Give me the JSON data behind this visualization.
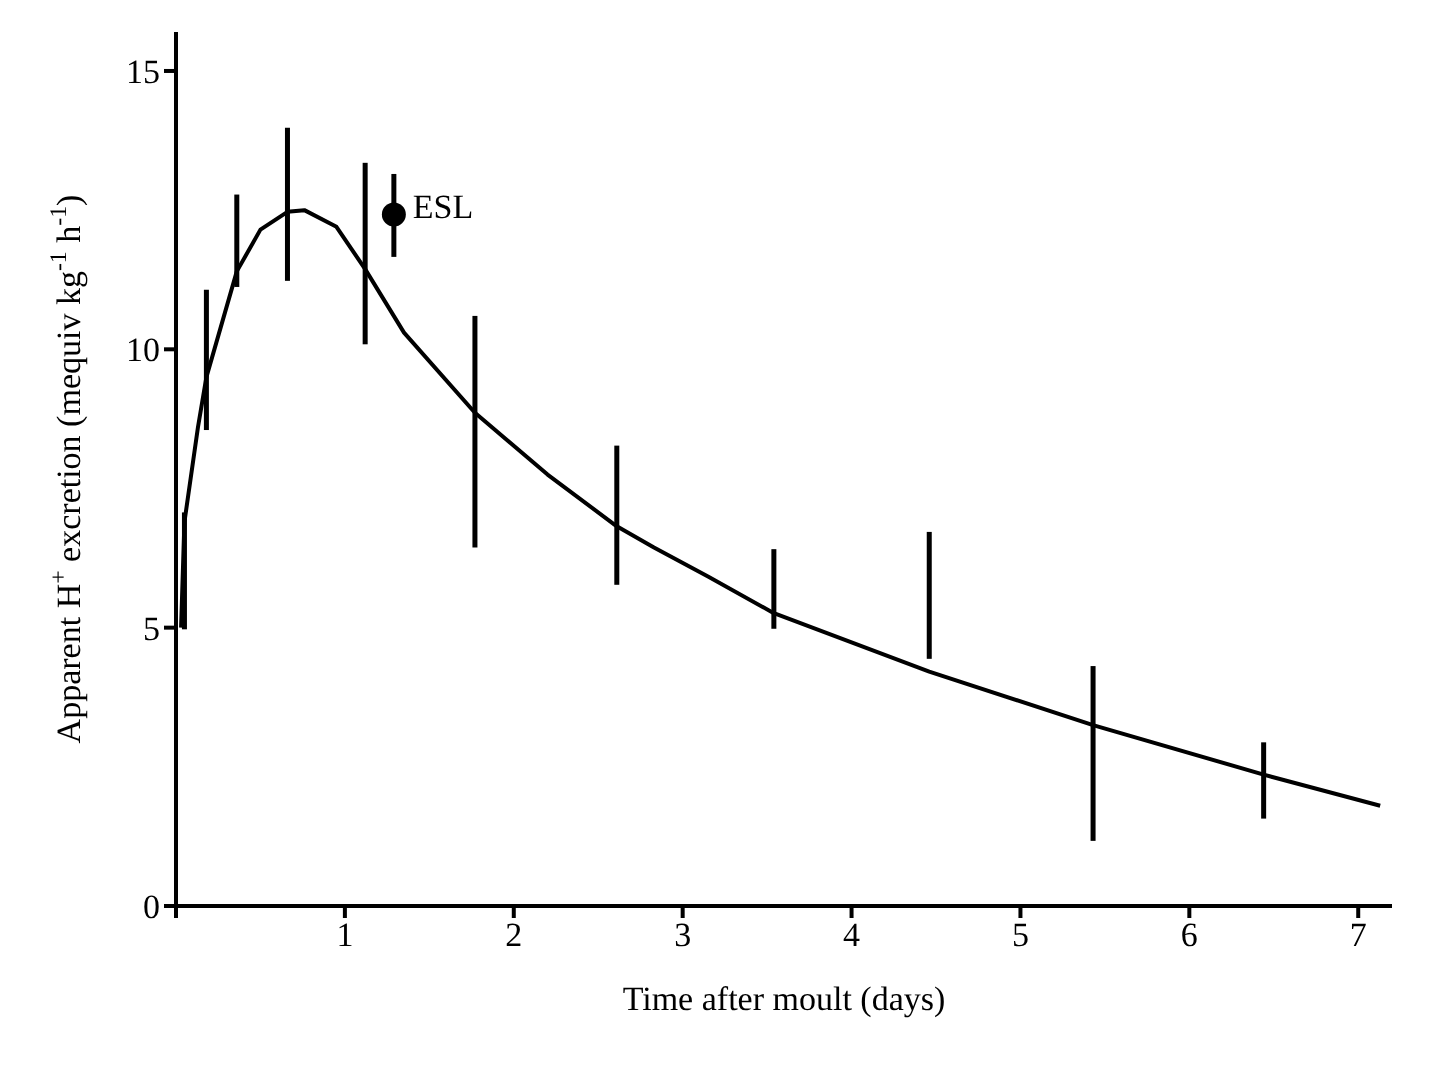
{
  "chart_data": {
    "type": "line",
    "xlabel": "Time after moult (days)",
    "ylabel": "Apparent H$^{+}$ excretion (mequiv kg$^{-1}$ h$^{-1}$)",
    "xlim": [
      0,
      7.2
    ],
    "ylim": [
      0,
      15.7
    ],
    "xticks": [
      {
        "value": 0,
        "label": null
      },
      1,
      2,
      3,
      4,
      5,
      6,
      7
    ],
    "yticks": [
      0,
      5,
      10,
      15
    ],
    "marker": "none",
    "series": [
      {
        "color": "#000000",
        "x": [
          0.03,
          0.05,
          0.13,
          0.18,
          0.36,
          0.5,
          0.66,
          0.76,
          0.95,
          1.12,
          1.35,
          1.77,
          2.2,
          2.61,
          2.83,
          3.15,
          3.54,
          4.46,
          5.43,
          6.44,
          7.13
        ],
        "values": [
          5.0,
          6.9,
          8.6,
          9.5,
          11.4,
          12.15,
          12.47,
          12.5,
          12.2,
          11.44,
          10.3,
          8.86,
          7.75,
          6.82,
          6.44,
          5.92,
          5.26,
          4.21,
          3.25,
          2.36,
          1.8
        ]
      },
      {
        "type": "bar",
        "color": "#000000",
        "x": [
          0.05,
          0.18,
          0.36,
          0.66,
          1.12,
          1.77,
          2.61,
          3.54,
          4.46,
          5.43,
          6.44
        ],
        "base": [
          4.97,
          8.55,
          11.12,
          11.23,
          10.09,
          6.44,
          5.77,
          4.98,
          4.44,
          1.17,
          1.57
        ],
        "values": [
          2.1,
          2.52,
          1.66,
          2.75,
          3.26,
          4.16,
          2.5,
          1.43,
          2.28,
          3.14,
          1.37
        ]
      },
      {
        "type": "scatter",
        "name": "ESL",
        "marker": "circle",
        "color": "#000000",
        "x": [
          1.29
        ],
        "values": [
          12.42
        ],
        "errors": [
          [
            11.66,
            13.15
          ]
        ]
      }
    ]
  }
}
